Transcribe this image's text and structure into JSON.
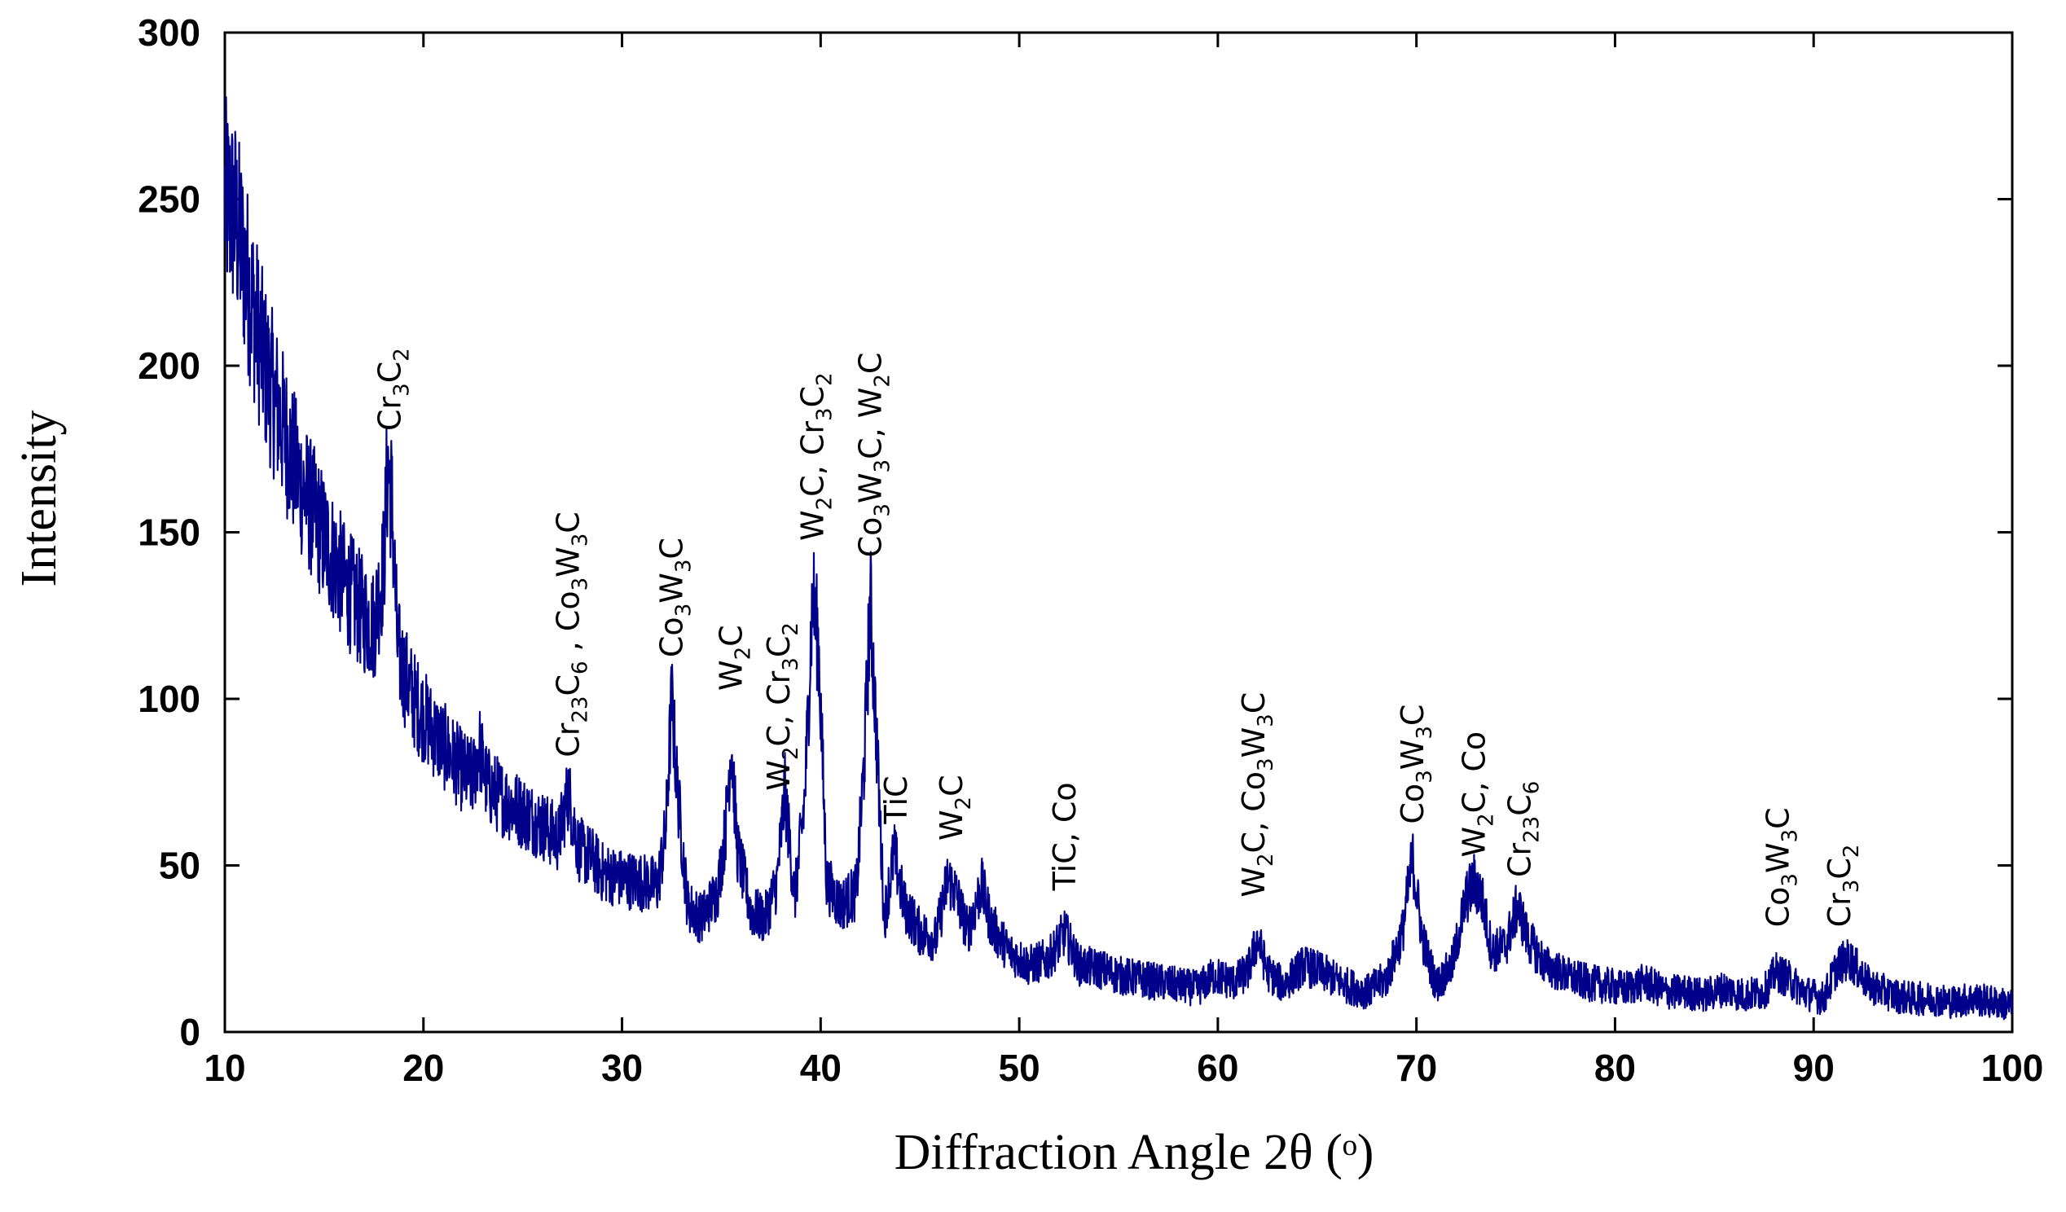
{
  "chart_data": {
    "type": "line",
    "xlabel": "Diffraction Angle 2θ (ᵒ)",
    "ylabel": "Intensity",
    "xlim": [
      10,
      100
    ],
    "ylim": [
      0,
      300
    ],
    "x_ticks": [
      "10",
      "20",
      "30",
      "40",
      "50",
      "60",
      "70",
      "80",
      "90",
      "100"
    ],
    "y_ticks": [
      "0",
      "50",
      "100",
      "150",
      "200",
      "250",
      "300"
    ],
    "grid": false,
    "line_color": "#00008b",
    "series": [
      {
        "description": "XRD pattern (noisy trace, values approximated)",
        "x": [
          10,
          10.5,
          11,
          11.5,
          12,
          12.5,
          13,
          13.5,
          14,
          14.5,
          15,
          15.5,
          16,
          16.5,
          17,
          17.5,
          18,
          18.2,
          18.4,
          18.7,
          19,
          19.5,
          20,
          20.5,
          21,
          21.5,
          22,
          22.5,
          22.8,
          23.2,
          24,
          25,
          26,
          26.8,
          27.3,
          27.8,
          28.5,
          29,
          30,
          31,
          31.8,
          32.2,
          32.5,
          32.8,
          33.3,
          34,
          34.8,
          35.2,
          35.5,
          35.8,
          36.5,
          37.2,
          37.8,
          38.2,
          38.7,
          39.2,
          39.6,
          39.9,
          40.3,
          41,
          41.8,
          42.2,
          42.5,
          42.8,
          43.2,
          43.7,
          44.2,
          45,
          45.8,
          46.4,
          46.8,
          47.4,
          48.1,
          48.6,
          49.5,
          50.5,
          51.5,
          52.3,
          53,
          54,
          55,
          56,
          57,
          58,
          59,
          59.8,
          60.8,
          61.5,
          62,
          62.5,
          63.3,
          64.3,
          65.2,
          66.5,
          67.5,
          68.5,
          69.3,
          69.8,
          70.3,
          71,
          71.8,
          72.5,
          72.9,
          73.3,
          73.8,
          74.5,
          75.1,
          75.6,
          76.5,
          77.5,
          78.5,
          79.5,
          80.5,
          81.5,
          82.5,
          83.5,
          84.5,
          85.5,
          86.5,
          87.5,
          88.1,
          88.7,
          89.5,
          90.5,
          91.2,
          91.8,
          92.8,
          94,
          95,
          96,
          97,
          98,
          99,
          100
        ],
        "y": [
          250,
          245,
          230,
          215,
          200,
          190,
          180,
          170,
          162,
          155,
          148,
          142,
          135,
          130,
          125,
          122,
          140,
          170,
          160,
          115,
          108,
          100,
          95,
          90,
          86,
          82,
          78,
          76,
          86,
          74,
          70,
          66,
          62,
          58,
          72,
          55,
          52,
          48,
          46,
          45,
          44,
          60,
          100,
          72,
          38,
          34,
          42,
          60,
          88,
          55,
          36,
          34,
          45,
          72,
          40,
          70,
          132,
          115,
          45,
          38,
          42,
          82,
          130,
          90,
          34,
          54,
          38,
          30,
          28,
          46,
          42,
          30,
          44,
          32,
          24,
          20,
          22,
          30,
          20,
          19,
          17,
          16,
          15,
          14,
          13,
          17,
          15,
          18,
          28,
          18,
          14,
          20,
          18,
          14,
          12,
          16,
          30,
          52,
          28,
          14,
          20,
          40,
          45,
          40,
          24,
          26,
          38,
          28,
          20,
          17,
          15,
          14,
          13,
          15,
          12,
          12,
          11,
          13,
          11,
          12,
          18,
          16,
          12,
          10,
          20,
          22,
          14,
          11,
          10,
          10,
          9,
          10,
          9,
          8
        ]
      }
    ],
    "peak_annotations": [
      {
        "x": 18.3,
        "y": 178,
        "parts": [
          [
            "Cr",
            "n"
          ],
          [
            "3",
            "s"
          ],
          [
            "C",
            "n"
          ],
          [
            "2",
            "s"
          ]
        ]
      },
      {
        "x": 27.3,
        "y": 80,
        "parts": [
          [
            "Cr",
            "n"
          ],
          [
            "23",
            "s"
          ],
          [
            "C",
            "n"
          ],
          [
            "6",
            "s"
          ],
          [
            " , Co",
            "n"
          ],
          [
            "3",
            "s"
          ],
          [
            "W",
            "n"
          ],
          [
            "3",
            "s"
          ],
          [
            "C",
            "n"
          ]
        ]
      },
      {
        "x": 32.5,
        "y": 110,
        "parts": [
          [
            "Co",
            "n"
          ],
          [
            "3",
            "s"
          ],
          [
            "W",
            "n"
          ],
          [
            "3",
            "s"
          ],
          [
            "C",
            "n"
          ]
        ]
      },
      {
        "x": 35.5,
        "y": 100,
        "parts": [
          [
            "W",
            "n"
          ],
          [
            "2",
            "s"
          ],
          [
            "C",
            "n"
          ]
        ]
      },
      {
        "x": 37.9,
        "y": 70,
        "parts": [
          [
            "W",
            "n"
          ],
          [
            "2",
            "s"
          ],
          [
            "C, Cr",
            "n"
          ],
          [
            "3",
            "s"
          ],
          [
            "C",
            "n"
          ],
          [
            "2",
            "s"
          ]
        ]
      },
      {
        "x": 39.6,
        "y": 145,
        "parts": [
          [
            "W",
            "n"
          ],
          [
            "2",
            "s"
          ],
          [
            "C, Cr",
            "n"
          ],
          [
            "3",
            "s"
          ],
          [
            "C",
            "n"
          ],
          [
            "2",
            "s"
          ]
        ]
      },
      {
        "x": 42.5,
        "y": 140,
        "parts": [
          [
            "Co",
            "n"
          ],
          [
            "3",
            "s"
          ],
          [
            "W",
            "n"
          ],
          [
            "3",
            "s"
          ],
          [
            "C, W",
            "n"
          ],
          [
            "2",
            "s"
          ],
          [
            "C",
            "n"
          ]
        ]
      },
      {
        "x": 43.8,
        "y": 60,
        "parts": [
          [
            "TiC",
            "n"
          ]
        ]
      },
      {
        "x": 46.6,
        "y": 55,
        "parts": [
          [
            "W",
            "n"
          ],
          [
            "2",
            "s"
          ],
          [
            "C",
            "n"
          ]
        ]
      },
      {
        "x": 52.3,
        "y": 40,
        "parts": [
          [
            "TiC, Co",
            "n"
          ]
        ]
      },
      {
        "x": 61.8,
        "y": 38,
        "parts": [
          [
            "W",
            "n"
          ],
          [
            "2",
            "s"
          ],
          [
            "C, Co",
            "n"
          ],
          [
            "3",
            "s"
          ],
          [
            "W",
            "n"
          ],
          [
            "3",
            "s"
          ],
          [
            "C",
            "n"
          ]
        ]
      },
      {
        "x": 69.8,
        "y": 60,
        "parts": [
          [
            "Co",
            "n"
          ],
          [
            "3",
            "s"
          ],
          [
            "W",
            "n"
          ],
          [
            "3",
            "s"
          ],
          [
            "C",
            "n"
          ]
        ]
      },
      {
        "x": 72.9,
        "y": 50,
        "parts": [
          [
            "W",
            "n"
          ],
          [
            "2",
            "s"
          ],
          [
            "C, Co",
            "n"
          ]
        ]
      },
      {
        "x": 75.2,
        "y": 44,
        "parts": [
          [
            "Cr",
            "n"
          ],
          [
            "23",
            "s"
          ],
          [
            "C",
            "n"
          ],
          [
            "6",
            "s"
          ]
        ]
      },
      {
        "x": 88.2,
        "y": 29,
        "parts": [
          [
            "Co",
            "n"
          ],
          [
            "3",
            "s"
          ],
          [
            "W",
            "n"
          ],
          [
            "3",
            "s"
          ],
          [
            "C",
            "n"
          ]
        ]
      },
      {
        "x": 91.3,
        "y": 29,
        "parts": [
          [
            "Cr",
            "n"
          ],
          [
            "3",
            "s"
          ],
          [
            "C",
            "n"
          ],
          [
            "2",
            "s"
          ]
        ]
      }
    ]
  }
}
